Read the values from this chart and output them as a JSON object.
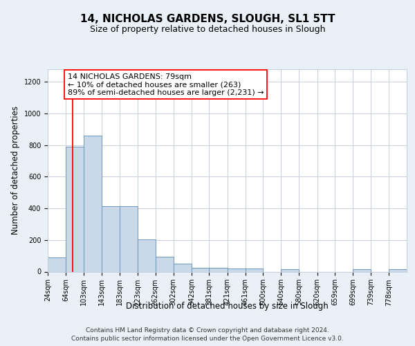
{
  "title": "14, NICHOLAS GARDENS, SLOUGH, SL1 5TT",
  "subtitle": "Size of property relative to detached houses in Slough",
  "xlabel": "Distribution of detached houses by size in Slough",
  "ylabel": "Number of detached properties",
  "footer_line1": "Contains HM Land Registry data © Crown copyright and database right 2024.",
  "footer_line2": "Contains public sector information licensed under the Open Government Licence v3.0.",
  "bins": [
    24,
    64,
    103,
    143,
    183,
    223,
    262,
    302,
    342,
    381,
    421,
    461,
    500,
    540,
    580,
    620,
    659,
    699,
    739,
    778,
    818
  ],
  "bar_heights": [
    90,
    790,
    860,
    415,
    415,
    205,
    95,
    50,
    25,
    25,
    20,
    20,
    0,
    15,
    0,
    0,
    0,
    15,
    0,
    15
  ],
  "bar_color": "#c9d9ea",
  "bar_edge_color": "#5b8db8",
  "red_line_x": 79,
  "annotation_line1": "14 NICHOLAS GARDENS: 79sqm",
  "annotation_line2": "← 10% of detached houses are smaller (263)",
  "annotation_line3": "89% of semi-detached houses are larger (2,231) →",
  "ylim": [
    0,
    1280
  ],
  "yticks": [
    0,
    200,
    400,
    600,
    800,
    1000,
    1200
  ],
  "bg_color": "#eaf0f8",
  "plot_bg_color": "#ffffff",
  "grid_color": "#c8d0dc",
  "title_fontsize": 11,
  "subtitle_fontsize": 9,
  "tick_label_fontsize": 7,
  "axis_label_fontsize": 8.5,
  "annotation_fontsize": 8,
  "footer_fontsize": 6.5
}
